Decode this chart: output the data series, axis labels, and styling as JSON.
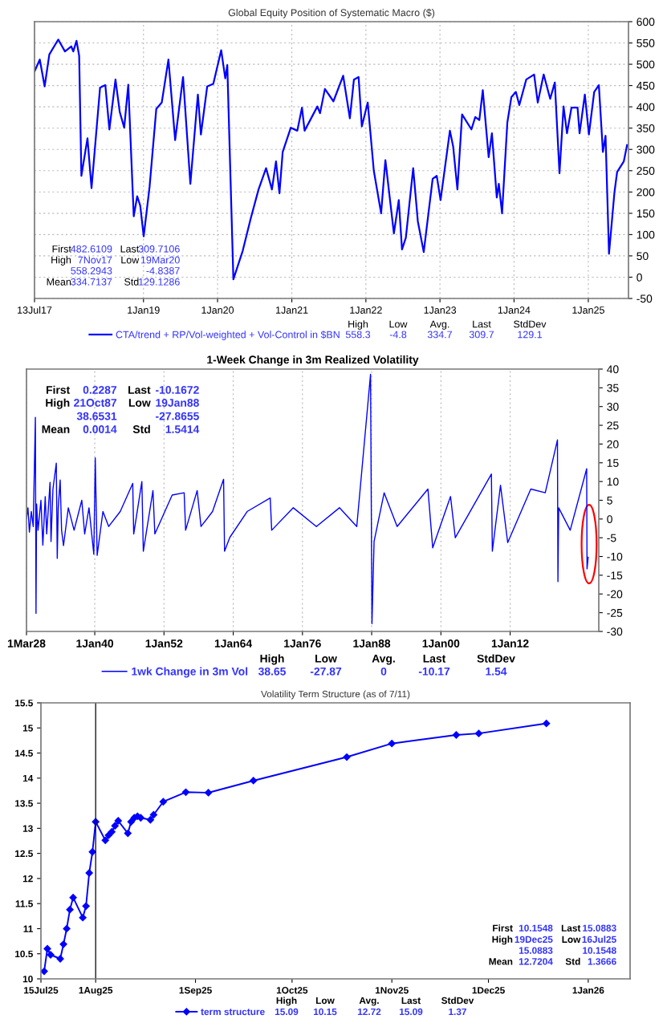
{
  "chart_data": [
    {
      "type": "line",
      "title": "Global Equity Position of Systematic Macro ($)",
      "x": [
        "2017-07-13",
        "2017-08-08",
        "2017-09-01",
        "2017-09-24",
        "2017-11-07",
        "2017-12-10",
        "2018-01-10",
        "2018-01-20",
        "2018-02-05",
        "2018-02-18",
        "2018-03-01",
        "2018-03-31",
        "2018-04-20",
        "2018-06-01",
        "2018-06-27",
        "2018-07-17",
        "2018-08-16",
        "2018-09-06",
        "2018-09-28",
        "2018-10-18",
        "2018-11-14",
        "2018-12-01",
        "2018-12-16",
        "2019-01-02",
        "2019-01-31",
        "2019-03-05",
        "2019-04-01",
        "2019-05-04",
        "2019-06-06",
        "2019-07-15",
        "2019-08-20",
        "2019-09-26",
        "2019-10-11",
        "2019-11-11",
        "2019-12-11",
        "2020-01-19",
        "2020-02-08",
        "2020-02-18",
        "2020-03-19",
        "2020-05-04",
        "2020-06-12",
        "2020-07-21",
        "2020-08-27",
        "2020-09-25",
        "2020-10-15",
        "2020-11-01",
        "2020-11-17",
        "2020-12-27",
        "2021-01-28",
        "2021-02-20",
        "2021-03-05",
        "2021-05-07",
        "2021-05-20",
        "2021-06-13",
        "2021-07-25",
        "2021-09-11",
        "2021-10-14",
        "2021-11-03",
        "2021-11-26",
        "2021-12-12",
        "2022-01-10",
        "2022-02-09",
        "2022-03-17",
        "2022-04-07",
        "2022-05-19",
        "2022-06-12",
        "2022-06-28",
        "2022-07-17",
        "2022-08-22",
        "2022-09-14",
        "2022-10-13",
        "2022-11-26",
        "2022-12-16",
        "2023-01-04",
        "2023-02-19",
        "2023-03-07",
        "2023-03-28",
        "2023-04-20",
        "2023-06-05",
        "2023-06-24",
        "2023-07-14",
        "2023-07-31",
        "2023-08-29",
        "2023-09-14",
        "2023-10-08",
        "2023-10-18",
        "2023-11-03",
        "2023-11-29",
        "2023-12-19",
        "2024-01-10",
        "2024-01-27",
        "2024-03-01",
        "2024-04-09",
        "2024-04-27",
        "2024-05-26",
        "2024-06-27",
        "2024-07-20",
        "2024-08-12",
        "2024-09-01",
        "2024-09-18",
        "2024-10-10",
        "2024-11-09",
        "2024-11-19",
        "2024-12-15",
        "2025-01-04",
        "2025-01-30",
        "2025-02-22",
        "2025-03-14",
        "2025-03-27",
        "2025-04-13",
        "2025-05-10",
        "2025-05-23",
        "2025-06-25",
        "2025-07-11"
      ],
      "series": [
        {
          "name": "CTA/trend + RP/Vol-weighted + Vol-Control in $BN",
          "color": "#0000ff",
          "values": [
            483,
            511,
            448,
            523,
            558,
            530,
            542,
            530,
            555,
            520,
            238,
            326,
            209,
            445,
            451,
            347,
            464,
            388,
            351,
            452,
            143,
            190,
            168,
            96,
            212,
            395,
            410,
            511,
            322,
            470,
            219,
            429,
            335,
            448,
            454,
            533,
            467,
            498,
            -5,
            62,
            137,
            206,
            256,
            206,
            272,
            197,
            294,
            351,
            344,
            398,
            344,
            401,
            385,
            442,
            413,
            473,
            373,
            464,
            470,
            354,
            410,
            250,
            150,
            275,
            103,
            181,
            65,
            93,
            256,
            131,
            59,
            231,
            238,
            181,
            344,
            307,
            206,
            382,
            347,
            376,
            369,
            439,
            282,
            338,
            187,
            219,
            150,
            363,
            423,
            435,
            404,
            464,
            476,
            410,
            476,
            419,
            457,
            244,
            401,
            338,
            398,
            398,
            338,
            429,
            335,
            435,
            451,
            294,
            332,
            55,
            200,
            247,
            272,
            310
          ]
        }
      ],
      "xlim": [
        "2017-07-13",
        "2025-07-18"
      ],
      "xticks": [
        {
          "value": "2017-07-13",
          "label": "13Jul17"
        },
        {
          "value": "2019-01-01",
          "label": "1Jan19"
        },
        {
          "value": "2020-01-01",
          "label": "1Jan20"
        },
        {
          "value": "2021-01-01",
          "label": "1Jan21"
        },
        {
          "value": "2022-01-01",
          "label": "1Jan22"
        },
        {
          "value": "2023-01-01",
          "label": "1Jan23"
        },
        {
          "value": "2024-01-01",
          "label": "1Jan24"
        },
        {
          "value": "2025-01-01",
          "label": "1Jan25"
        }
      ],
      "ylim": [
        -50,
        600
      ],
      "yticks": [
        -50,
        0,
        50,
        100,
        150,
        200,
        250,
        300,
        350,
        400,
        450,
        500,
        550,
        600
      ],
      "grid": true,
      "legend": "bottom",
      "annotations": [
        "First",
        "482.6109",
        "Last",
        "309.7106",
        "High",
        "7Nov17",
        "Low",
        "19Mar20",
        "558.2943",
        "-4.8387",
        "Mean",
        "334.7137",
        "Std",
        "129.1286",
        "High",
        "Low",
        "Avg.",
        "Last",
        "StdDev",
        "558.3",
        "-4.8",
        "334.7",
        "309.7",
        "129.1"
      ]
    },
    {
      "type": "line",
      "title": "1-Week Change in 3m Realized Volatility",
      "x": [
        "1928-03-01",
        "1928-06-01",
        "1928-09-01",
        "1929-01-01",
        "1929-05-01",
        "1929-09-15",
        "1929-10-25",
        "1929-12-01",
        "1930-03-01",
        "1930-09-01",
        "1931-01-01",
        "1931-06-01",
        "1931-09-01",
        "1932-04-01",
        "1932-06-01",
        "1932-10-01",
        "1933-05-01",
        "1933-07-01",
        "1933-09-01",
        "1934-01-01",
        "1934-04-01",
        "1934-08-01",
        "1935-06-01",
        "1936-06-01",
        "1937-10-01",
        "1938-04-01",
        "1939-01-01",
        "1939-11-01",
        "1940-02-01",
        "1940-06-01",
        "1941-06-01",
        "1942-06-01",
        "1944-06-01",
        "1946-08-01",
        "1946-10-01",
        "1948-03-01",
        "1948-06-01",
        "1950-02-01",
        "1950-06-01",
        "1953-06-01",
        "1955-07-01",
        "1955-10-01",
        "1957-10-01",
        "1958-06-01",
        "1960-06-01",
        "1962-05-01",
        "1962-07-01",
        "1963-06-01",
        "1966-06-01",
        "1970-06-01",
        "1970-09-01",
        "1974-06-01",
        "1978-06-01",
        "1982-06-01",
        "1985-06-01",
        "1987-10-21",
        "1988-01-19",
        "1988-06-01",
        "1990-03-01",
        "1992-06-01",
        "1997-10-01",
        "1998-08-01",
        "2001-09-01",
        "2002-07-01",
        "2008-10-01",
        "2008-12-01",
        "2010-05-01",
        "2011-08-01",
        "2015-08-01",
        "2018-02-01",
        "2020-03-15",
        "2020-04-15",
        "2020-06-01",
        "2022-06-01",
        "2025-04-08",
        "2025-05-01",
        "2025-07-11"
      ],
      "series": [
        {
          "name": "1wk Change in 3m Vol",
          "color": "#0000ff",
          "values": [
            0.2,
            3,
            -3.5,
            2,
            -2,
            27.1,
            -25.2,
            4,
            -3,
            5,
            -7,
            6,
            -4,
            9.8,
            -6,
            8,
            14.9,
            -10.5,
            3,
            10.4,
            -3,
            -7.1,
            3,
            -3,
            5,
            -4,
            3,
            -9.4,
            16.3,
            -9.7,
            2,
            -2,
            2,
            9.5,
            -4,
            10,
            -8.6,
            7.6,
            -4,
            6.4,
            7,
            -3,
            7.6,
            -2,
            2,
            10.6,
            -8.6,
            -4.9,
            2,
            5.6,
            -3,
            3,
            -2,
            3,
            -2,
            38.6,
            -27.9,
            -6,
            7,
            -2,
            8,
            -7.7,
            6,
            -5,
            12,
            -8.6,
            9,
            -6.3,
            8,
            7,
            21.1,
            -16.7,
            3,
            -3,
            13.4,
            -13.3,
            -10.2
          ]
        }
      ],
      "xlim": [
        "1928-03-01",
        "2027-05-15"
      ],
      "xticks": [
        {
          "value": "1928-03-01",
          "label": "1Mar28"
        },
        {
          "value": "1940-01-01",
          "label": "1Jan40"
        },
        {
          "value": "1952-01-01",
          "label": "1Jan52"
        },
        {
          "value": "1964-01-01",
          "label": "1Jan64"
        },
        {
          "value": "1976-01-01",
          "label": "1Jan76"
        },
        {
          "value": "1988-01-01",
          "label": "1Jan88"
        },
        {
          "value": "2000-01-01",
          "label": "1Jan00"
        },
        {
          "value": "2012-01-01",
          "label": "1Jan12"
        }
      ],
      "ylim": [
        -30,
        40
      ],
      "yticks": [
        -30,
        -25,
        -20,
        -15,
        -10,
        -5,
        0,
        5,
        10,
        15,
        20,
        25,
        30,
        35,
        40
      ],
      "grid": "x",
      "legend": "bottom",
      "annotations": [
        "First",
        "0.2287",
        "Last",
        "-10.1672",
        "High",
        "21Oct87",
        "Low",
        "19Jan88",
        "38.6531",
        "-27.8655",
        "Mean",
        "0.0014",
        "Std",
        "1.5414",
        "High",
        "Low",
        "Avg.",
        "Last",
        "StdDev",
        "38.65",
        "-27.87",
        "0",
        "-10.17",
        "1.54"
      ]
    },
    {
      "type": "line",
      "title": "Volatility Term Structure (as of 7/11)",
      "x": [
        "2025-07-16",
        "2025-07-17",
        "2025-07-18",
        "2025-07-21",
        "2025-07-22",
        "2025-07-23",
        "2025-07-24",
        "2025-07-25",
        "2025-07-28",
        "2025-07-29",
        "2025-07-30",
        "2025-07-31",
        "2025-08-01",
        "2025-08-04",
        "2025-08-05",
        "2025-08-06",
        "2025-08-07",
        "2025-08-08",
        "2025-08-11",
        "2025-08-12",
        "2025-08-13",
        "2025-08-14",
        "2025-08-15",
        "2025-08-18",
        "2025-08-19",
        "2025-08-22",
        "2025-08-29",
        "2025-09-05",
        "2025-09-19",
        "2025-10-18",
        "2025-11-01",
        "2025-11-21",
        "2025-11-28",
        "2025-12-19"
      ],
      "series": [
        {
          "name": "term structure",
          "color": "#0000ff",
          "marker": "diamond",
          "values": [
            10.15,
            10.6,
            10.48,
            10.4,
            10.69,
            11.0,
            11.38,
            11.62,
            11.22,
            11.45,
            12.11,
            12.53,
            13.13,
            12.76,
            12.86,
            12.93,
            13.05,
            13.15,
            12.9,
            13.13,
            13.21,
            13.24,
            13.21,
            13.17,
            13.27,
            13.53,
            13.72,
            13.71,
            13.95,
            14.42,
            14.69,
            14.86,
            14.89,
            15.09
          ]
        }
      ],
      "xlim": [
        "2025-07-15",
        "2026-01-14"
      ],
      "xticks": [
        {
          "value": "2025-07-15",
          "label": "15Jul25"
        },
        {
          "value": "2025-08-01",
          "label": "1Aug25"
        },
        {
          "value": "2025-09-01",
          "label": "1Sep25"
        },
        {
          "value": "2025-10-01",
          "label": "1Oct25"
        },
        {
          "value": "2025-11-01",
          "label": "1Nov25"
        },
        {
          "value": "2025-12-01",
          "label": "1Dec25"
        },
        {
          "value": "2026-01-01",
          "label": "1Jan26"
        }
      ],
      "ylim": [
        10,
        15.5
      ],
      "yticks": [
        10,
        10.5,
        11,
        11.5,
        12,
        12.5,
        13,
        13.5,
        14,
        14.5,
        15,
        15.5
      ],
      "ref_lines": [
        {
          "axis": "x",
          "value": "2025-08-01",
          "color": "#000000"
        }
      ],
      "legend": "bottom",
      "annotations": [
        "First",
        "10.1548",
        "Last",
        "15.0883",
        "High",
        "19Dec25",
        "Low",
        "16Jul25",
        "15.0883",
        "10.1548",
        "Mean",
        "12.7204",
        "Std",
        "1.3666",
        "High",
        "Low",
        "Avg.",
        "Last",
        "StdDev",
        "15.09",
        "10.15",
        "12.72",
        "15.09",
        "1.37"
      ]
    }
  ]
}
